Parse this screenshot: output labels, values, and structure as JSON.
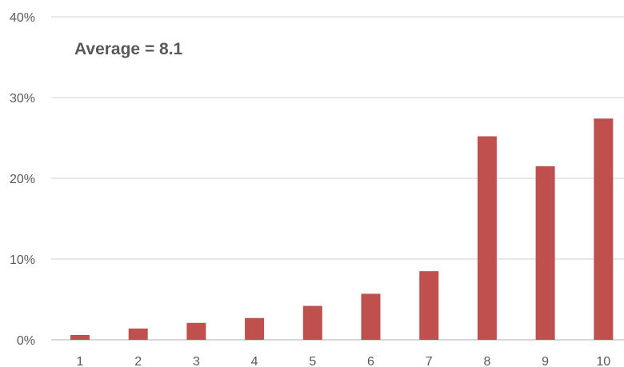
{
  "chart_data": {
    "type": "bar",
    "categories": [
      "1",
      "2",
      "3",
      "4",
      "5",
      "6",
      "7",
      "8",
      "9",
      "10"
    ],
    "values": [
      0.6,
      1.4,
      2.1,
      2.7,
      4.2,
      5.7,
      8.5,
      25.2,
      21.5,
      27.4
    ],
    "ylim": [
      0,
      40
    ],
    "yticks": [
      "0%",
      "10%",
      "20%",
      "30%",
      "40%"
    ],
    "annotation": "Average = 8.1",
    "grid": true,
    "bar_color": "#c0504d",
    "title": "",
    "xlabel": "",
    "ylabel": ""
  }
}
